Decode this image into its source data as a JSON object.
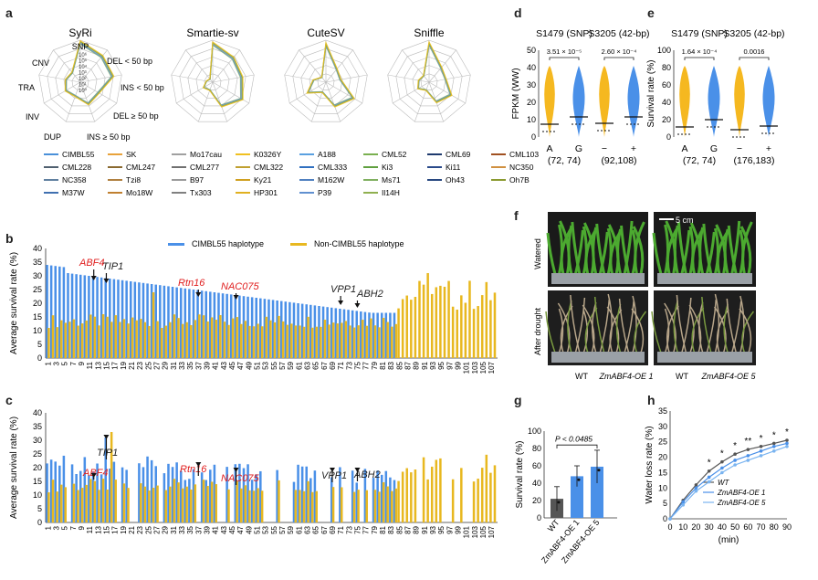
{
  "panel_letters": [
    "a",
    "b",
    "c",
    "d",
    "e",
    "f",
    "g",
    "h"
  ],
  "radar": {
    "titles": [
      "SyRi",
      "Smartie-sv",
      "CuteSV",
      "Sniffle"
    ],
    "axis_labels": [
      "SNP",
      "DEL < 50 bp",
      "INS < 50 bp",
      "DEL ≥ 50 bp",
      "INS ≥ 50 bp",
      "DUP",
      "INV",
      "TRA",
      "CNV"
    ],
    "ticks": [
      "10⁶",
      "10⁵",
      "10⁴",
      "10³",
      "10²",
      "10¹",
      "10⁰"
    ],
    "legend": [
      {
        "name": "CIMBL55",
        "color": "#4a90d9"
      },
      {
        "name": "SK",
        "color": "#e8a23a"
      },
      {
        "name": "Mo17cau",
        "color": "#a0a0a0"
      },
      {
        "name": "K0326Y",
        "color": "#f0c020"
      },
      {
        "name": "A188",
        "color": "#5aa0e0"
      },
      {
        "name": "CML52",
        "color": "#7ab050"
      },
      {
        "name": "CML69",
        "color": "#1e3a6e"
      },
      {
        "name": "CML103",
        "color": "#a05020"
      },
      {
        "name": "CML228",
        "color": "#506070"
      },
      {
        "name": "CML247",
        "color": "#8a6a30"
      },
      {
        "name": "CML277",
        "color": "#707070"
      },
      {
        "name": "CML322",
        "color": "#c0a030"
      },
      {
        "name": "CML333",
        "color": "#3070c0"
      },
      {
        "name": "Ki3",
        "color": "#60a040"
      },
      {
        "name": "Ki11",
        "color": "#2a4a8a"
      },
      {
        "name": "NC350",
        "color": "#d09040"
      },
      {
        "name": "NC358",
        "color": "#6080a0"
      },
      {
        "name": "Tzi8",
        "color": "#b08040"
      },
      {
        "name": "B97",
        "color": "#9a9a9a"
      },
      {
        "name": "Ky21",
        "color": "#d0a020"
      },
      {
        "name": "M162W",
        "color": "#5080c0"
      },
      {
        "name": "Ms71",
        "color": "#80b060"
      },
      {
        "name": "Oh43",
        "color": "#284880"
      },
      {
        "name": "Oh7B",
        "color": "#8a9a30"
      },
      {
        "name": "M37W",
        "color": "#4070b0"
      },
      {
        "name": "Mo18W",
        "color": "#c08030"
      },
      {
        "name": "Tx303",
        "color": "#808080"
      },
      {
        "name": "HP301",
        "color": "#e0b020"
      },
      {
        "name": "P39",
        "color": "#6090d0"
      },
      {
        "name": "Il14H",
        "color": "#90b050"
      }
    ]
  },
  "bar_b": {
    "ylabel": "Average survival rate (%)",
    "legend": [
      "CIMBL55 haplotype",
      "Non-CIMBL55 haplotype"
    ],
    "ylim": [
      0,
      40
    ],
    "yticks": [
      "0",
      "5",
      "10",
      "15",
      "20",
      "25",
      "30",
      "35",
      "40"
    ],
    "xticks": [
      "1",
      "3",
      "5",
      "7",
      "9",
      "11",
      "13",
      "15",
      "17",
      "19",
      "21",
      "23",
      "25",
      "27",
      "29",
      "31",
      "33",
      "35",
      "37",
      "39",
      "41",
      "43",
      "45",
      "47",
      "49",
      "51",
      "53",
      "55",
      "57",
      "59",
      "61",
      "63",
      "65",
      "67",
      "69",
      "71",
      "73",
      "75",
      "77",
      "79",
      "81",
      "83",
      "85",
      "87",
      "89",
      "91",
      "93",
      "95",
      "97",
      "99",
      "101",
      "103",
      "105",
      "107"
    ],
    "genes": [
      {
        "name": "ABF4",
        "color": "#e02020",
        "italic": true
      },
      {
        "name": "TIP1",
        "color": "#222222",
        "italic": true
      },
      {
        "name": "Rtn16",
        "color": "#e02020",
        "italic": true
      },
      {
        "name": "NAC075",
        "color": "#e02020",
        "italic": true
      },
      {
        "name": "VPP1",
        "color": "#222222",
        "italic": true
      },
      {
        "name": "ABH2",
        "color": "#222222",
        "italic": true
      }
    ]
  },
  "bar_c": {
    "ylabel": "Average survival rate (%)",
    "ylim": [
      0,
      40
    ],
    "yticks": [
      "0",
      "5",
      "10",
      "15",
      "20",
      "25",
      "30",
      "35",
      "40"
    ],
    "genes": [
      {
        "name": "ABF4",
        "color": "#e02020"
      },
      {
        "name": "TIP1",
        "color": "#222222"
      },
      {
        "name": "Rtn16",
        "color": "#e02020"
      },
      {
        "name": "NAC075",
        "color": "#e02020"
      },
      {
        "name": "VPP1",
        "color": "#222222"
      },
      {
        "name": "ABH2",
        "color": "#222222"
      }
    ]
  },
  "violin_d": {
    "ylabel": "FPKM (WW)",
    "titles": [
      "S1479 (SNP)",
      "S3205 (42-bp)"
    ],
    "pvalues": [
      "3.51 × 10⁻⁵",
      "2.60 × 10⁻⁴"
    ],
    "yticks": [
      "0",
      "10",
      "20",
      "30",
      "40",
      "50"
    ],
    "groups": [
      "A",
      "G",
      "−",
      "+"
    ],
    "counts": [
      "(72, 74)",
      "(92,108)"
    ]
  },
  "violin_e": {
    "ylabel": "Survival rate (%)",
    "titles": [
      "S1479 (SNP)",
      "S3205 (42-bp)"
    ],
    "pvalues": [
      "1.64 × 10⁻⁴",
      "0.0016"
    ],
    "yticks": [
      "0",
      "20",
      "40",
      "60",
      "80",
      "100"
    ],
    "groups": [
      "A",
      "G",
      "−",
      "+"
    ],
    "counts": [
      "(72, 74)",
      "(176,183)"
    ]
  },
  "photo_f": {
    "row_labels": [
      "Watered",
      "After drought"
    ],
    "scale": "5 cm",
    "captions": [
      "WT",
      "ZmABF4-OE 1",
      "WT",
      "ZmABF4-OE 5"
    ]
  },
  "chart_data": [
    {
      "type": "bar",
      "panel": "g",
      "ylabel": "Survival rate (%)",
      "categories": [
        "WT",
        "ZmABF4-OE 1",
        "ZmABF4-OE 5"
      ],
      "values": [
        22,
        48,
        59
      ],
      "errors": [
        14,
        12,
        19
      ],
      "ylim": [
        0,
        100
      ],
      "yticks": [
        "0",
        "20",
        "40",
        "60",
        "80",
        "100"
      ],
      "annotation": "P < 0.0485",
      "colors": [
        "#555555",
        "#4a90e8",
        "#4a90e8"
      ]
    },
    {
      "type": "line",
      "panel": "h",
      "ylabel": "Water loss rate (%)",
      "xlabel": "(min)",
      "x": [
        0,
        10,
        20,
        30,
        40,
        50,
        60,
        70,
        80,
        90
      ],
      "ylim": [
        0,
        35
      ],
      "xticks": [
        "0",
        "10",
        "20",
        "30",
        "40",
        "50",
        "60",
        "70",
        "80",
        "90"
      ],
      "yticks": [
        "0",
        "5",
        "10",
        "15",
        "20",
        "25",
        "30",
        "35"
      ],
      "series": [
        {
          "name": "WT",
          "color": "#555555",
          "values": [
            0,
            6,
            11,
            15.5,
            18.5,
            21,
            22.5,
            23.5,
            24.5,
            25.5
          ]
        },
        {
          "name": "ZmABF4-OE 1",
          "color": "#4a90e8",
          "values": [
            0,
            5.5,
            10,
            13.5,
            16.5,
            19,
            20.5,
            22,
            23.5,
            24.5
          ]
        },
        {
          "name": "ZmABF4-OE 5",
          "color": "#7ab4f0",
          "values": [
            0,
            4.5,
            9,
            12,
            15,
            17.5,
            19,
            20.5,
            22,
            23.5
          ]
        }
      ],
      "significance": [
        "*",
        "*",
        "*",
        "**",
        "*",
        "*",
        "*"
      ]
    }
  ]
}
